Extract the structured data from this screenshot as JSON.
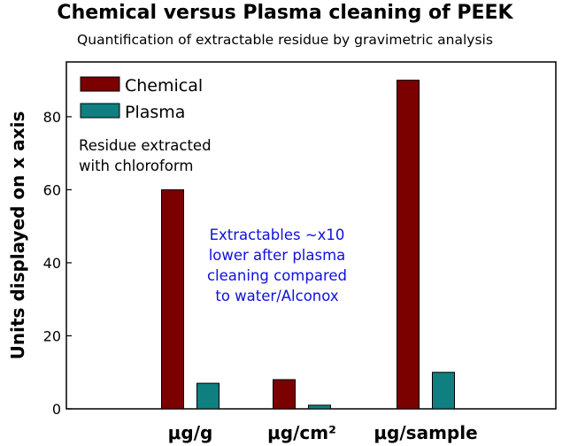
{
  "title": "Chemical versus Plasma cleaning of PEEK",
  "subtitle": "Quantification of extractable residue by gravimetric analysis",
  "annotations": {
    "residue_line1": "Residue extracted",
    "residue_line2": "with chloroform",
    "blue_line1": "Extractables ~x10",
    "blue_line2": "lower after plasma",
    "blue_line3": "cleaning compared",
    "blue_line4": "to water/Alconox"
  },
  "colors": {
    "chemical": "#7b0000",
    "plasma": "#0f7f7f",
    "annotation_blue": "#1010dd"
  },
  "chart_data": {
    "type": "bar",
    "title": "Chemical versus Plasma cleaning of PEEK",
    "subtitle": "Quantification of extractable residue by gravimetric analysis",
    "xlabel": "",
    "ylabel": "Units displayed on x axis",
    "categories": [
      "μg/g",
      "μg/cm²",
      "μg/sample"
    ],
    "series": [
      {
        "name": "Chemical",
        "values": [
          60,
          8,
          90
        ]
      },
      {
        "name": "Plasma",
        "values": [
          7,
          1,
          10
        ]
      }
    ],
    "ylim": [
      0,
      95
    ],
    "yticks": [
      "0",
      "20",
      "40",
      "60",
      "80"
    ],
    "legend": "top-left",
    "grid": false
  }
}
